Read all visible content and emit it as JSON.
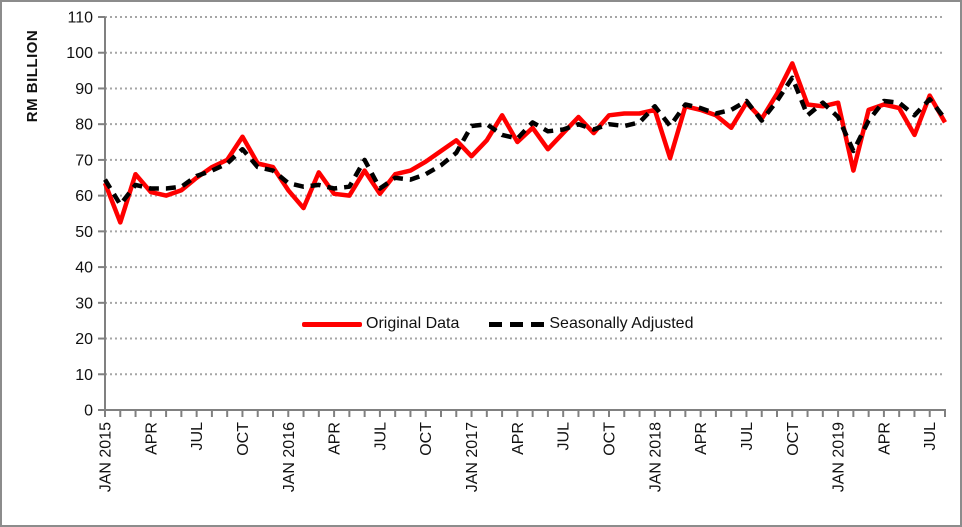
{
  "y_axis": {
    "title": "RM BILLION",
    "min": 0,
    "max": 110,
    "step": 10,
    "tick_labels": [
      "0",
      "10",
      "20",
      "30",
      "40",
      "50",
      "60",
      "70",
      "80",
      "90",
      "100",
      "110"
    ]
  },
  "x_axis": {
    "tick_labels": [
      {
        "i": 0,
        "label": "JAN 2015"
      },
      {
        "i": 3,
        "label": "APR"
      },
      {
        "i": 6,
        "label": "JUL"
      },
      {
        "i": 9,
        "label": "OCT"
      },
      {
        "i": 12,
        "label": "JAN 2016"
      },
      {
        "i": 15,
        "label": "APR"
      },
      {
        "i": 18,
        "label": "JUL"
      },
      {
        "i": 21,
        "label": "OCT"
      },
      {
        "i": 24,
        "label": "JAN 2017"
      },
      {
        "i": 27,
        "label": "APR"
      },
      {
        "i": 30,
        "label": "JUL"
      },
      {
        "i": 33,
        "label": "OCT"
      },
      {
        "i": 36,
        "label": "JAN 2018"
      },
      {
        "i": 39,
        "label": "APR"
      },
      {
        "i": 42,
        "label": "JUL"
      },
      {
        "i": 45,
        "label": "OCT"
      },
      {
        "i": 48,
        "label": "JAN 2019"
      },
      {
        "i": 51,
        "label": "APR"
      },
      {
        "i": 54,
        "label": "JUL"
      }
    ]
  },
  "legend": {
    "items": [
      {
        "label": "Original Data",
        "color": "#ff0000",
        "style": "solid"
      },
      {
        "label": "Seasonally Adjusted",
        "color": "#000000",
        "style": "dashed"
      }
    ]
  },
  "colors": {
    "original": "#ff0000",
    "seasonally_adjusted": "#000000",
    "gridline": "#a6a6a6",
    "axis": "#808080",
    "text": "#111111"
  },
  "chart_data": {
    "type": "line",
    "ylabel": "RM BILLION",
    "ylim": [
      0,
      110
    ],
    "grid": "horizontal-dotted",
    "legend_position": "inside-lower-center",
    "x": [
      "JAN 2015",
      "FEB 2015",
      "MAR 2015",
      "APR 2015",
      "MAY 2015",
      "JUN 2015",
      "JUL 2015",
      "AUG 2015",
      "SEP 2015",
      "OCT 2015",
      "NOV 2015",
      "DEC 2015",
      "JAN 2016",
      "FEB 2016",
      "MAR 2016",
      "APR 2016",
      "MAY 2016",
      "JUN 2016",
      "JUL 2016",
      "AUG 2016",
      "SEP 2016",
      "OCT 2016",
      "NOV 2016",
      "DEC 2016",
      "JAN 2017",
      "FEB 2017",
      "MAR 2017",
      "APR 2017",
      "MAY 2017",
      "JUN 2017",
      "JUL 2017",
      "AUG 2017",
      "SEP 2017",
      "OCT 2017",
      "NOV 2017",
      "DEC 2017",
      "JAN 2018",
      "FEB 2018",
      "MAR 2018",
      "APR 2018",
      "MAY 2018",
      "JUN 2018",
      "JUL 2018",
      "AUG 2018",
      "SEP 2018",
      "OCT 2018",
      "NOV 2018",
      "DEC 2018",
      "JAN 2019",
      "FEB 2019",
      "MAR 2019",
      "APR 2019",
      "MAY 2019",
      "JUN 2019",
      "JUL 2019",
      "AUG 2019"
    ],
    "series": [
      {
        "name": "Original Data",
        "color": "#ff0000",
        "line_style": "solid",
        "values": [
          63.5,
          52.5,
          66,
          61,
          60,
          61.5,
          65,
          68,
          70,
          76.5,
          69,
          68,
          61.5,
          56.5,
          66.5,
          60.5,
          60,
          67,
          60.5,
          66,
          67,
          69.5,
          72.5,
          75.5,
          71,
          75.5,
          82.5,
          75,
          79,
          73,
          77.5,
          82,
          77.5,
          82.5,
          83,
          83,
          84,
          70.5,
          85,
          84,
          82.5,
          79,
          86,
          81.5,
          88.5,
          97,
          85.5,
          85,
          86,
          67,
          84,
          85.5,
          84.5,
          77,
          88,
          80.5
        ]
      },
      {
        "name": "Seasonally Adjusted",
        "color": "#000000",
        "line_style": "dashed",
        "values": [
          64.5,
          57.5,
          63,
          62,
          62,
          62.5,
          65.5,
          67,
          69,
          73,
          68,
          67,
          63.5,
          62.5,
          63,
          62,
          62.5,
          70,
          62,
          65,
          64.5,
          66,
          68.5,
          72,
          79.5,
          80,
          77,
          76,
          80.5,
          78,
          78.5,
          80,
          78.5,
          80,
          79.5,
          80.5,
          85,
          79.5,
          85.5,
          84.5,
          83,
          84,
          86.5,
          81,
          86.5,
          93,
          82.5,
          86,
          82,
          72.5,
          81,
          86.5,
          86,
          82.5,
          87,
          81.5
        ]
      }
    ]
  }
}
